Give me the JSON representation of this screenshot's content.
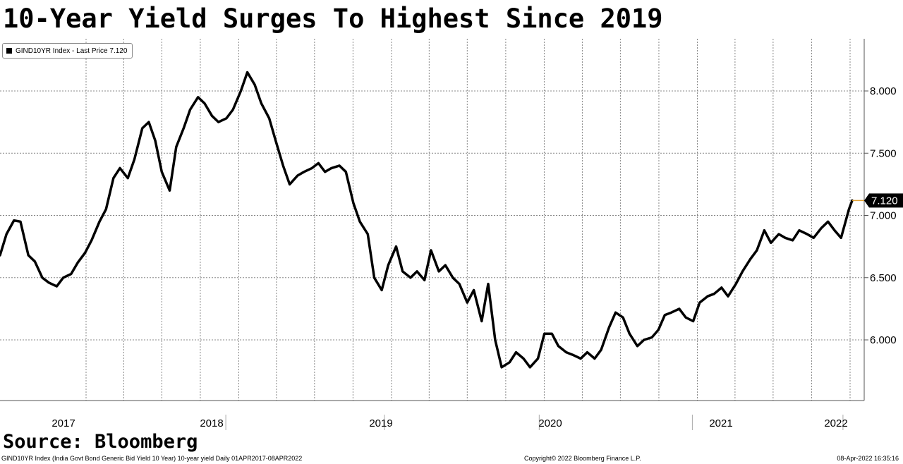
{
  "header": {
    "title": "10-Year Yield Surges To Highest Since 2019"
  },
  "legend": {
    "label": "GIND10YR Index - Last Price 7.120"
  },
  "source": {
    "label": "Source: Bloomberg"
  },
  "footer": {
    "left": "GIND10YR Index (India Govt Bond Generic Bid Yield 10 Year) 10-year yield  Daily 01APR2017-08APR2022",
    "center": "Copyright© 2022 Bloomberg Finance L.P.",
    "right": "08-Apr-2022 16:35:16"
  },
  "chart_data": {
    "type": "line",
    "title": "10-Year Yield Surges To Highest Since 2019",
    "xlabel": "",
    "ylabel": "",
    "ylim": [
      5.5,
      8.5
    ],
    "yticks": [
      "6.000",
      "6.500",
      "7.000",
      "7.500",
      "8.000"
    ],
    "xticks": [
      "2017",
      "2018",
      "2019",
      "2020",
      "2021",
      "2022"
    ],
    "grid": true,
    "legend_position": "top-left",
    "last_value": "7.120",
    "colors": {
      "line": "#000000",
      "last_marker": "#000000",
      "last_connector": "#e0a030"
    },
    "series": [
      {
        "name": "GIND10YR Index - Last Price",
        "x": [
          "2017-04-01",
          "2017-04-15",
          "2017-05-01",
          "2017-05-15",
          "2017-06-01",
          "2017-06-15",
          "2017-07-01",
          "2017-07-15",
          "2017-08-01",
          "2017-08-15",
          "2017-09-01",
          "2017-09-15",
          "2017-10-01",
          "2017-10-15",
          "2017-11-01",
          "2017-11-15",
          "2017-12-01",
          "2017-12-15",
          "2018-01-01",
          "2018-01-15",
          "2018-02-01",
          "2018-02-15",
          "2018-03-01",
          "2018-03-15",
          "2018-04-01",
          "2018-04-15",
          "2018-05-01",
          "2018-05-15",
          "2018-06-01",
          "2018-06-15",
          "2018-07-01",
          "2018-07-15",
          "2018-08-01",
          "2018-08-15",
          "2018-09-01",
          "2018-09-15",
          "2018-10-01",
          "2018-10-15",
          "2018-11-01",
          "2018-11-15",
          "2018-12-01",
          "2018-12-15",
          "2019-01-01",
          "2019-01-15",
          "2019-02-01",
          "2019-02-15",
          "2019-03-01",
          "2019-03-15",
          "2019-04-01",
          "2019-04-15",
          "2019-05-01",
          "2019-05-15",
          "2019-06-01",
          "2019-06-15",
          "2019-07-01",
          "2019-07-15",
          "2019-08-01",
          "2019-08-15",
          "2019-09-01",
          "2019-09-15",
          "2019-10-01",
          "2019-10-15",
          "2019-11-01",
          "2019-11-15",
          "2019-12-01",
          "2019-12-15",
          "2020-01-01",
          "2020-01-15",
          "2020-02-01",
          "2020-02-15",
          "2020-03-01",
          "2020-03-15",
          "2020-04-01",
          "2020-04-15",
          "2020-05-01",
          "2020-05-15",
          "2020-06-01",
          "2020-06-15",
          "2020-07-01",
          "2020-07-15",
          "2020-08-01",
          "2020-08-15",
          "2020-09-01",
          "2020-09-15",
          "2020-10-01",
          "2020-10-15",
          "2020-11-01",
          "2020-11-15",
          "2020-12-01",
          "2020-12-15",
          "2021-01-01",
          "2021-01-15",
          "2021-02-01",
          "2021-02-15",
          "2021-03-01",
          "2021-03-15",
          "2021-04-01",
          "2021-04-15",
          "2021-05-01",
          "2021-05-15",
          "2021-06-01",
          "2021-06-15",
          "2021-07-01",
          "2021-07-15",
          "2021-08-01",
          "2021-08-15",
          "2021-09-01",
          "2021-09-15",
          "2021-10-01",
          "2021-10-15",
          "2021-11-01",
          "2021-11-15",
          "2021-12-01",
          "2021-12-15",
          "2022-01-01",
          "2022-01-15",
          "2022-02-01",
          "2022-02-15",
          "2022-03-01",
          "2022-03-15",
          "2022-04-01",
          "2022-04-08"
        ],
        "values": [
          6.68,
          6.85,
          6.96,
          6.95,
          6.68,
          6.63,
          6.5,
          6.46,
          6.43,
          6.5,
          6.53,
          6.62,
          6.7,
          6.8,
          6.95,
          7.05,
          7.3,
          7.38,
          7.3,
          7.45,
          7.7,
          7.75,
          7.6,
          7.35,
          7.2,
          7.55,
          7.7,
          7.85,
          7.95,
          7.9,
          7.8,
          7.75,
          7.78,
          7.85,
          8.0,
          8.15,
          8.05,
          7.9,
          7.78,
          7.6,
          7.4,
          7.25,
          7.32,
          7.35,
          7.38,
          7.42,
          7.35,
          7.38,
          7.4,
          7.35,
          7.1,
          6.95,
          6.85,
          6.5,
          6.4,
          6.6,
          6.75,
          6.55,
          6.5,
          6.55,
          6.48,
          6.72,
          6.55,
          6.6,
          6.5,
          6.45,
          6.3,
          6.4,
          6.15,
          6.45,
          6.0,
          5.78,
          5.82,
          5.9,
          5.85,
          5.78,
          5.85,
          6.05,
          6.05,
          5.95,
          5.9,
          5.88,
          5.85,
          5.9,
          5.85,
          5.92,
          6.1,
          6.22,
          6.18,
          6.05,
          5.95,
          6.0,
          6.02,
          6.08,
          6.2,
          6.22,
          6.25,
          6.18,
          6.15,
          6.3,
          6.35,
          6.37,
          6.42,
          6.35,
          6.45,
          6.55,
          6.65,
          6.72,
          6.88,
          6.78,
          6.85,
          6.82,
          6.8,
          6.88,
          6.85,
          6.82,
          6.9,
          6.95,
          6.88,
          6.82,
          7.05,
          7.12
        ]
      }
    ]
  }
}
